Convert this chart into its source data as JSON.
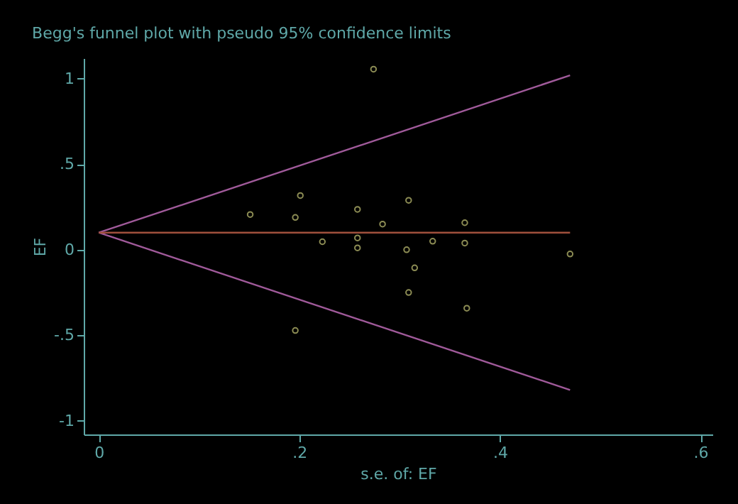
{
  "chart_data": {
    "type": "scatter",
    "title": "Begg's funnel plot with pseudo 95% confidence limits",
    "xlabel": "s.e. of: EF",
    "ylabel": "EF",
    "xlim": [
      -0.015,
      0.612
    ],
    "ylim": [
      -1.08,
      1.12
    ],
    "xticks": [
      0,
      {
        "value": 0.2,
        "label": ".2"
      },
      {
        "value": 0.4,
        "label": ".4"
      },
      {
        "value": 0.6,
        "label": ".6"
      }
    ],
    "yticks": [
      -1,
      {
        "value": -0.5,
        "label": "-.5"
      },
      0,
      {
        "value": 0.5,
        "label": ".5"
      },
      1
    ],
    "grid": false,
    "series": [
      {
        "type": "line",
        "marker": "none",
        "line_style": "solid",
        "color": "#a05a9a",
        "x": [
          0,
          0.47
        ],
        "values": [
          0.1,
          1.02
        ]
      },
      {
        "type": "line",
        "marker": "none",
        "line_style": "solid",
        "color": "#a05a9a",
        "x": [
          0,
          0.47
        ],
        "values": [
          0.1,
          -0.82
        ]
      },
      {
        "type": "line",
        "marker": "none",
        "line_style": "solid",
        "color": "#a0503c",
        "x": [
          0,
          0.47
        ],
        "values": [
          0.1,
          0.1
        ]
      },
      {
        "marker": "circle",
        "color": "#c8c878",
        "x": [
          0.274,
          0.151,
          0.196,
          0.201,
          0.223,
          0.258,
          0.258,
          0.258,
          0.283,
          0.309,
          0.307,
          0.315,
          0.309,
          0.333,
          0.365,
          0.365,
          0.367,
          0.196,
          0.47
        ],
        "values": [
          1.056,
          0.206,
          0.189,
          0.317,
          0.047,
          0.236,
          0.069,
          0.011,
          0.15,
          0.289,
          0.0,
          -0.106,
          -0.25,
          0.05,
          0.158,
          0.039,
          -0.342,
          -0.472,
          -0.025
        ]
      }
    ]
  }
}
